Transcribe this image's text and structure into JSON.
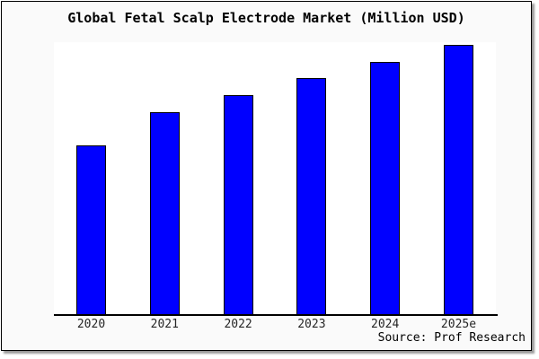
{
  "chart_data": {
    "type": "bar",
    "title": "Global Fetal Scalp Electrode Market (Million USD)",
    "categories": [
      "2020",
      "2021",
      "2022",
      "2023",
      "2024",
      "2025e"
    ],
    "values": [
      62.7,
      75.0,
      81.3,
      87.7,
      93.7,
      100.0
    ],
    "value_note": "No y-axis scale, gridlines or value labels are shown in the chart; values are relative bar heights expressed as percent of the tallest bar (2025e = 100).",
    "xlabel": "",
    "ylabel": "",
    "ylim": [
      0,
      100
    ],
    "grid": false,
    "legend": null,
    "source_annotation": "Source: Prof Research"
  },
  "colors": {
    "bar_fill": "#0000ff",
    "bar_border": "#000000",
    "frame_background": "#fafafa",
    "plot_background": "#ffffff",
    "axis_line": "#000000",
    "title_text": "#000000",
    "tick_label_text": "#262626",
    "shadow": "#999999"
  }
}
